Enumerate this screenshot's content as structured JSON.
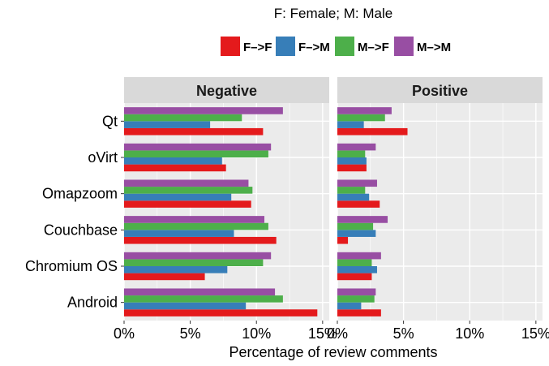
{
  "chart_data": {
    "type": "bar",
    "orientation": "horizontal",
    "legend": {
      "title": "F: Female; M: Male",
      "position": "top"
    },
    "xlabel": "Percentage of review comments",
    "ylabel": "",
    "xlim": [
      0,
      15.5
    ],
    "xticks": [
      0,
      5,
      10,
      15
    ],
    "xtick_labels": [
      "0%",
      "5%",
      "10%",
      "15%"
    ],
    "grid": true,
    "categories": [
      "Qt",
      "oVirt",
      "Omapzoom",
      "Couchbase",
      "Chromium OS",
      "Android"
    ],
    "series": [
      {
        "name": "F–>F",
        "color": "#e41a1c"
      },
      {
        "name": "F–>M",
        "color": "#377eb8"
      },
      {
        "name": "M–>F",
        "color": "#4daf4a"
      },
      {
        "name": "M–>M",
        "color": "#984ea3"
      }
    ],
    "facets": [
      {
        "title": "Negative",
        "values": {
          "F–>F": [
            10.5,
            7.7,
            9.6,
            11.5,
            6.1,
            14.6
          ],
          "F–>M": [
            6.5,
            7.4,
            8.1,
            8.3,
            7.8,
            9.2
          ],
          "M–>F": [
            8.9,
            10.9,
            9.7,
            10.9,
            10.5,
            12.0
          ],
          "M–>M": [
            12.0,
            11.1,
            9.4,
            10.6,
            11.1,
            11.4
          ]
        }
      },
      {
        "title": "Positive",
        "values": {
          "F–>F": [
            5.3,
            2.2,
            3.2,
            0.8,
            2.6,
            3.3
          ],
          "F–>M": [
            2.0,
            2.2,
            2.4,
            2.9,
            3.0,
            1.8
          ],
          "M–>F": [
            3.6,
            2.1,
            2.1,
            2.7,
            2.6,
            2.8
          ],
          "M–>M": [
            4.1,
            2.9,
            3.0,
            3.8,
            3.3,
            2.9
          ]
        }
      }
    ]
  }
}
